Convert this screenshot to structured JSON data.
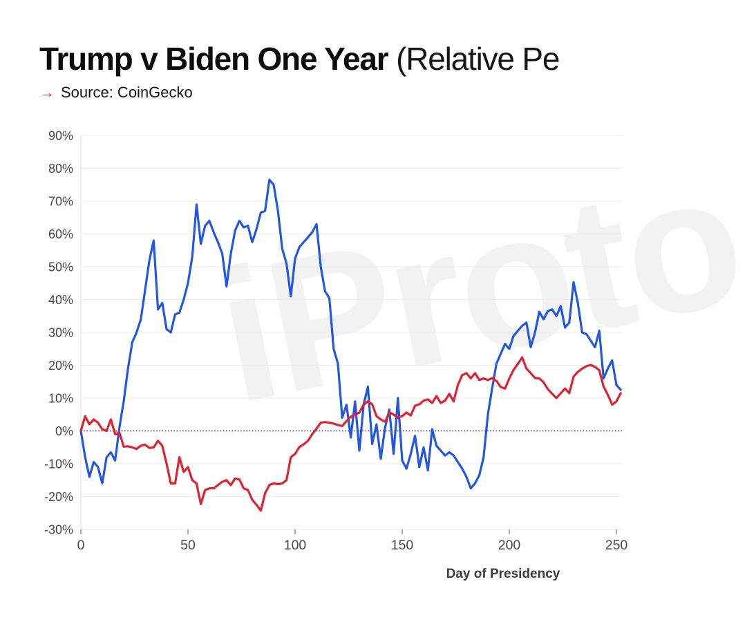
{
  "header": {
    "title_bold": "Trump v Biden One Year",
    "title_light": " (Relative Pe",
    "source_arrow": "→",
    "source_text": "Source: CoinGecko"
  },
  "watermark": {
    "text": "iProto",
    "color": "#f2f2f2"
  },
  "colors": {
    "blue_line": "#2456e4",
    "red_line": "#de2230",
    "grid": "#ececec",
    "axis_line": "#e0e0e0",
    "zero_line": "#2e2e2e",
    "tick_text": "#474747",
    "tick_mark": "#909090"
  },
  "chart_data": {
    "type": "line",
    "title": "Trump v Biden One Year (Relative Pe",
    "xlabel": "Day of Presidency",
    "ylabel": "",
    "grid": "horizontal",
    "zero_line_dotted": true,
    "xlim": [
      0,
      252
    ],
    "ylim": [
      -30,
      90
    ],
    "x_ticks": [
      0,
      50,
      100,
      150,
      200,
      250
    ],
    "y_tick_values": [
      90,
      80,
      70,
      60,
      50,
      40,
      30,
      20,
      10,
      0,
      -10,
      -20,
      -30
    ],
    "y_tick_labels": [
      "90%",
      "80%",
      "70%",
      "60%",
      "50%",
      "40%",
      "30%",
      "20%",
      "10%",
      "0%",
      "-10%",
      "-20%",
      "-30%"
    ],
    "x_step": 2,
    "series": [
      {
        "name": "blue-line",
        "color": "#2456e4",
        "values": [
          0,
          -8,
          -14,
          -9.5,
          -11,
          -16,
          -8,
          -6.5,
          -9,
          1,
          9,
          19,
          27,
          30,
          34,
          43,
          52,
          58,
          37,
          39,
          31,
          30,
          35.5,
          36,
          40,
          45,
          53,
          69,
          57,
          62.5,
          64,
          60.5,
          57.5,
          54,
          44,
          54,
          61,
          64,
          62,
          62.5,
          57.5,
          61.5,
          66.5,
          67,
          76.5,
          75,
          67,
          55.5,
          51,
          41,
          52.5,
          56,
          57.5,
          59,
          60.5,
          63,
          50,
          42.5,
          40.5,
          25,
          20.5,
          4,
          8,
          -2,
          9,
          -6,
          8,
          13.5,
          -4,
          2,
          -8.5,
          1,
          6.5,
          -7,
          10,
          -9,
          -11.5,
          -7,
          -1.5,
          -11,
          -5,
          -12,
          0.5,
          -4.5,
          -6,
          -7.5,
          -6.5,
          -7.5,
          -9.5,
          -11.5,
          -14,
          -17.5,
          -16,
          -13.5,
          -8,
          5,
          13,
          20.5,
          23.5,
          26.5,
          25,
          29,
          30.5,
          32,
          33,
          25.5,
          30,
          36.3,
          34,
          36.5,
          37,
          35,
          38,
          31.5,
          33,
          45.3,
          39,
          30,
          29.5,
          27.5,
          25.5,
          30.5,
          16,
          19,
          21.5,
          14,
          12.5
        ]
      },
      {
        "name": "red-line",
        "color": "#de2230",
        "values": [
          0,
          4.5,
          2,
          3.5,
          2.5,
          0.5,
          0,
          3.5,
          -1,
          -0.5,
          -4.8,
          -4.7,
          -5,
          -5.5,
          -4.5,
          -4.2,
          -5.2,
          -5,
          -3,
          -4.5,
          -10,
          -16,
          -16,
          -8,
          -12.5,
          -11,
          -15,
          -16,
          -22.3,
          -18,
          -17.5,
          -17.5,
          -16.5,
          -15.5,
          -15,
          -16.5,
          -14.5,
          -14.8,
          -17.5,
          -18,
          -21,
          -22.5,
          -24.3,
          -19,
          -16.5,
          -16,
          -16.2,
          -16,
          -15,
          -8,
          -7,
          -4.9,
          -4.1,
          -3,
          -1,
          0.7,
          2.5,
          2.7,
          2.5,
          2.2,
          1.8,
          1.5,
          3,
          4.3,
          5,
          5.6,
          8,
          9,
          8.1,
          4.5,
          3.5,
          2.8,
          5.6,
          5,
          4,
          4.5,
          5.6,
          4.7,
          7.7,
          8.1,
          9.2,
          9.6,
          8.5,
          10.6,
          8.5,
          9.2,
          11.3,
          9,
          14,
          17,
          17.6,
          16,
          17.6,
          15.5,
          16,
          15.5,
          16.1,
          15.2,
          13.4,
          12.9,
          16,
          18.6,
          20.4,
          22.4,
          19,
          17.6,
          16.1,
          16,
          14.8,
          12.7,
          11.3,
          10,
          11.5,
          12.9,
          11.5,
          16.5,
          18,
          19,
          19.7,
          20.1,
          19.5,
          18.5,
          13.5,
          11,
          8,
          9,
          11.5
        ]
      }
    ]
  }
}
